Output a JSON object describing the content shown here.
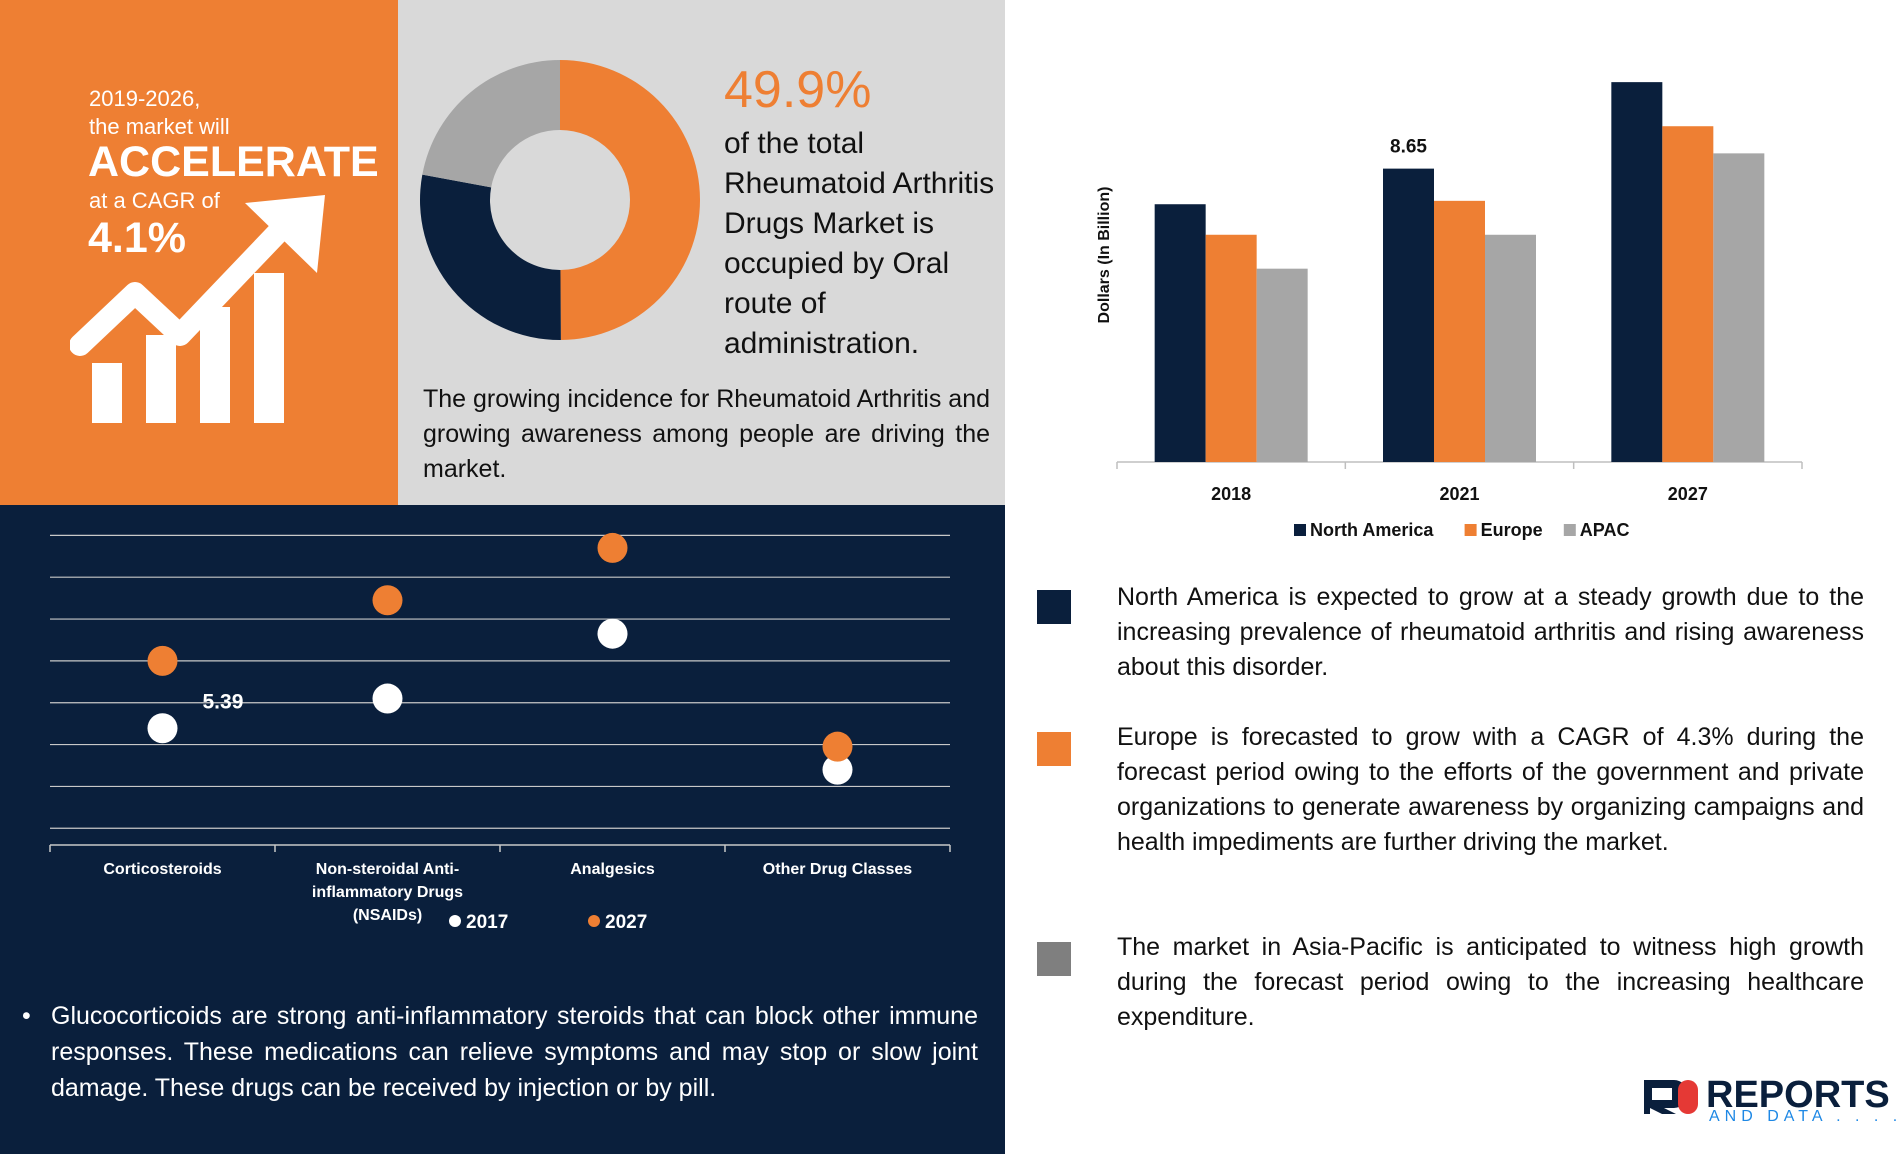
{
  "cagr": {
    "line1": "2019-2026,",
    "line2": "the market will",
    "headline": "ACCELERATE",
    "line3": "at a CAGR of",
    "value": "4.1%"
  },
  "share": {
    "percent": "49.9%",
    "text": "of the total Rheumatoid Arthritis Drugs Market is occupied by Oral route of administration.",
    "donut": [
      {
        "segment": "Oral",
        "value": 49.9,
        "color": "#ee7f33"
      },
      {
        "segment": "navy",
        "value": 28.0,
        "color": "#0a1f3c"
      },
      {
        "segment": "grey",
        "value": 22.1,
        "color": "#a6a6a6"
      }
    ]
  },
  "driver": "The growing incidence for Rheumatoid Arthritis and growing awareness among people are driving the market.",
  "bullet": "Glucocorticoids are strong anti-inflammatory steroids that can block other immune responses. These medications can relieve symptoms and may stop or slow joint damage. These drugs can be received by injection or by pill.",
  "regions": [
    {
      "text": "North America is expected to grow at a steady growth due to the increasing prevalence of rheumatoid arthritis and rising awareness about this disorder.",
      "color": "#0a1f3c"
    },
    {
      "text": "Europe is forecasted to grow with a CAGR of 4.3% during the forecast period owing to the efforts of the government and private organizations to generate awareness by organizing campaigns and health impediments are further driving the market.",
      "color": "#ee7f33"
    },
    {
      "text": "The market in Asia-Pacific is anticipated to witness high growth during the forecast period owing to the increasing healthcare expenditure.",
      "color": "#7f7f7f"
    }
  ],
  "logo": {
    "main": "REPORTS",
    "sub": "AND DATA . . . ."
  },
  "chart_data": [
    {
      "type": "bar",
      "title": "",
      "xlabel": "",
      "ylabel": "Dollars (In Billion)",
      "categories": [
        "2018",
        "2021",
        "2027"
      ],
      "series": [
        {
          "name": "North America",
          "color": "#0a1f3c",
          "values": [
            7.6,
            8.65,
            11.2
          ]
        },
        {
          "name": "Europe",
          "color": "#ee7f33",
          "values": [
            6.7,
            7.7,
            9.9
          ]
        },
        {
          "name": "APAC",
          "color": "#a6a6a6",
          "values": [
            5.7,
            6.7,
            9.1
          ]
        }
      ],
      "data_labels": [
        {
          "series": 0,
          "category": 1,
          "text": "8.65"
        }
      ],
      "ylim": [
        0,
        12
      ],
      "grid": false,
      "legend": "bottom"
    },
    {
      "type": "scatter",
      "title": "",
      "xlabel": "",
      "ylabel": "",
      "categories": [
        "Corticosteroids",
        "Non-steroidal Anti-inflammatory Drugs (NSAIDs)",
        "Analgesics",
        "Other Drug Classes"
      ],
      "category_lines": [
        [
          "Corticosteroids"
        ],
        [
          "Non-steroidal Anti-",
          "inflammatory Drugs",
          "(NSAIDs)"
        ],
        [
          "Analgesics"
        ],
        [
          "Other Drug Classes"
        ]
      ],
      "series": [
        {
          "name": "2017",
          "color": "#ffffff",
          "values": [
            5.39,
            6.1,
            7.65,
            4.4
          ]
        },
        {
          "name": "2027",
          "color": "#ee7f33",
          "values": [
            7.0,
            8.45,
            9.7,
            4.95
          ]
        }
      ],
      "data_labels": [
        {
          "series": 0,
          "category": 0,
          "text": "5.39"
        }
      ],
      "ylim": [
        2.6,
        10.2
      ],
      "grid": true,
      "legend": "bottom"
    }
  ]
}
